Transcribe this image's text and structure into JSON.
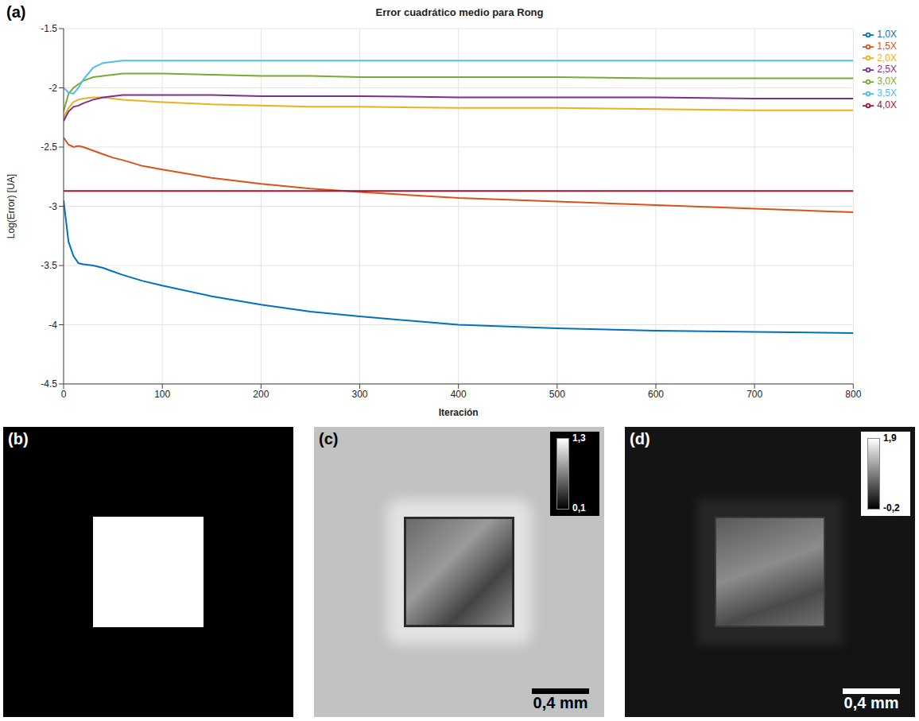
{
  "chart_data": {
    "type": "line",
    "panel": "(a)",
    "title": "Error cuadrático medio para Rong",
    "xlabel": "Iteración",
    "ylabel": "Log(Error) [UA]",
    "x": [
      0,
      5,
      10,
      15,
      20,
      30,
      40,
      50,
      60,
      80,
      100,
      150,
      200,
      250,
      300,
      400,
      500,
      600,
      700,
      800
    ],
    "series": [
      {
        "name": "1,0X",
        "color": "#0072BD",
        "values": [
          -2.95,
          -3.3,
          -3.42,
          -3.48,
          -3.49,
          -3.5,
          -3.52,
          -3.55,
          -3.58,
          -3.63,
          -3.67,
          -3.76,
          -3.83,
          -3.89,
          -3.93,
          -4.0,
          -4.03,
          -4.05,
          -4.06,
          -4.07
        ]
      },
      {
        "name": "1,5X",
        "color": "#D95319",
        "values": [
          -2.42,
          -2.48,
          -2.5,
          -2.49,
          -2.5,
          -2.53,
          -2.56,
          -2.59,
          -2.61,
          -2.66,
          -2.69,
          -2.76,
          -2.81,
          -2.85,
          -2.88,
          -2.93,
          -2.96,
          -2.99,
          -3.02,
          -3.05
        ]
      },
      {
        "name": "2,0X",
        "color": "#EDB120",
        "values": [
          -2.25,
          -2.17,
          -2.12,
          -2.1,
          -2.09,
          -2.08,
          -2.08,
          -2.09,
          -2.1,
          -2.11,
          -2.12,
          -2.14,
          -2.15,
          -2.16,
          -2.16,
          -2.17,
          -2.17,
          -2.18,
          -2.19,
          -2.19
        ]
      },
      {
        "name": "2,5X",
        "color": "#7E2F8E",
        "values": [
          -2.28,
          -2.2,
          -2.16,
          -2.15,
          -2.13,
          -2.1,
          -2.08,
          -2.07,
          -2.06,
          -2.06,
          -2.06,
          -2.06,
          -2.07,
          -2.07,
          -2.07,
          -2.08,
          -2.08,
          -2.08,
          -2.09,
          -2.09
        ]
      },
      {
        "name": "3,0X",
        "color": "#77AC30",
        "values": [
          -2.2,
          -2.05,
          -2.0,
          -1.97,
          -1.94,
          -1.91,
          -1.9,
          -1.89,
          -1.88,
          -1.88,
          -1.88,
          -1.89,
          -1.9,
          -1.9,
          -1.91,
          -1.91,
          -1.91,
          -1.92,
          -1.92,
          -1.92
        ]
      },
      {
        "name": "3,5X",
        "color": "#4DBEEE",
        "values": [
          -2.0,
          -2.04,
          -2.05,
          -2.0,
          -1.93,
          -1.83,
          -1.79,
          -1.78,
          -1.77,
          -1.77,
          -1.77,
          -1.77,
          -1.77,
          -1.77,
          -1.77,
          -1.77,
          -1.77,
          -1.77,
          -1.77,
          -1.77
        ]
      },
      {
        "name": "4,0X",
        "color": "#A2142F",
        "values": [
          -2.87,
          -2.87,
          -2.87,
          -2.87,
          -2.87,
          -2.87,
          -2.87,
          -2.87,
          -2.87,
          -2.87,
          -2.87,
          -2.87,
          -2.87,
          -2.87,
          -2.87,
          -2.87,
          -2.87,
          -2.87,
          -2.87,
          -2.87
        ]
      }
    ],
    "xlim": [
      0,
      800
    ],
    "xticks": [
      0,
      100,
      200,
      300,
      400,
      500,
      600,
      700,
      800
    ],
    "ylim": [
      -4.5,
      -1.5
    ],
    "yticks": [
      -4.5,
      -4,
      -3.5,
      -3,
      -2.5,
      -2,
      -1.5
    ],
    "grid": true,
    "legend": "right"
  },
  "images": [
    {
      "panel": "(b)"
    },
    {
      "panel": "(c)",
      "colorbar": {
        "range": [
          0.1,
          1.3
        ],
        "ticks": [
          {
            "value": 1.3,
            "label": "1,3"
          },
          {
            "value": 0.1,
            "label": "0,1"
          }
        ]
      },
      "scale_bar": "0,4 mm"
    },
    {
      "panel": "(d)",
      "colorbar": {
        "range": [
          -0.2,
          1.9
        ],
        "ticks": [
          {
            "value": 1.9,
            "label": "1,9"
          },
          {
            "value": -0.2,
            "label": "-0,2"
          }
        ]
      },
      "scale_bar": "0,4 mm"
    }
  ]
}
